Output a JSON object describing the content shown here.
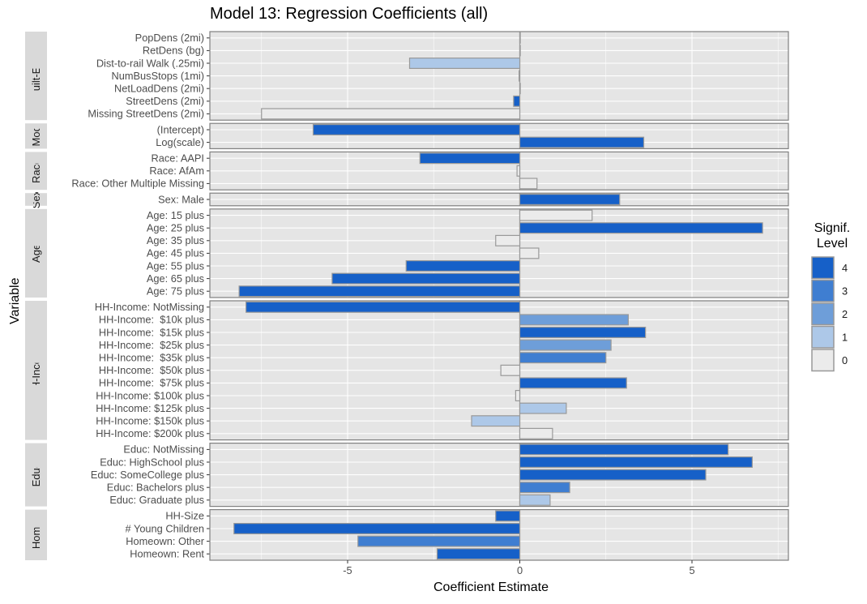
{
  "chart_data": {
    "type": "bar",
    "orientation": "horizontal",
    "title": "Model 13: Regression Coefficients (all)",
    "xlabel": "Coefficient Estimate",
    "ylabel": "Variable",
    "xlim": [
      -9,
      7.8
    ],
    "x_ticks": [
      -5,
      0,
      5
    ],
    "x_tick_labels": [
      "-5",
      "0",
      "5"
    ],
    "grid": true,
    "legend": {
      "title_line1": "Signif.",
      "title_line2": "Level",
      "position": "right",
      "levels": [
        "4",
        "3",
        "2",
        "1",
        "0"
      ],
      "colors": [
        "#1660c8",
        "#3f7ed1",
        "#6e9ed9",
        "#adc8e8",
        "#ebebeb"
      ]
    },
    "panels": [
      {
        "name": "Built-Env.",
        "rows": [
          {
            "label": "PopDens (2mi)",
            "value": 0.0,
            "level": 0
          },
          {
            "label": "RetDens (bg)",
            "value": 0.0,
            "level": 0
          },
          {
            "label": "Dist-to-rail Walk (.25mi)",
            "value": -3.2,
            "level": 1
          },
          {
            "label": "NumBusStops (1mi)",
            "value": -0.02,
            "level": 0
          },
          {
            "label": "NetLoadDens (2mi)",
            "value": 0.0,
            "level": 0
          },
          {
            "label": "StreetDens (2mi)",
            "value": -0.18,
            "level": 4
          },
          {
            "label": "Missing StreetDens (2mi)",
            "value": -7.5,
            "level": 0
          }
        ]
      },
      {
        "name": "Mod",
        "rows": [
          {
            "label": "(Intercept)",
            "value": -6.0,
            "level": 4
          },
          {
            "label": "Log(scale)",
            "value": 3.6,
            "level": 4
          }
        ]
      },
      {
        "name": "Race",
        "rows": [
          {
            "label": "Race: AAPI",
            "value": -2.9,
            "level": 4
          },
          {
            "label": "Race: AfAm",
            "value": -0.08,
            "level": 0
          },
          {
            "label": "Race: Other Multiple Missing",
            "value": 0.5,
            "level": 0
          }
        ]
      },
      {
        "name": "Sex",
        "rows": [
          {
            "label": "Sex: Male",
            "value": 2.9,
            "level": 4
          }
        ]
      },
      {
        "name": "Age",
        "rows": [
          {
            "label": "Age: 15 plus",
            "value": 2.1,
            "level": 0
          },
          {
            "label": "Age: 25 plus",
            "value": 7.05,
            "level": 4
          },
          {
            "label": "Age: 35 plus",
            "value": -0.7,
            "level": 0
          },
          {
            "label": "Age: 45 plus",
            "value": 0.55,
            "level": 0
          },
          {
            "label": "Age: 55 plus",
            "value": -3.3,
            "level": 4
          },
          {
            "label": "Age: 65 plus",
            "value": -5.45,
            "level": 4
          },
          {
            "label": "Age: 75 plus",
            "value": -8.15,
            "level": 4
          }
        ]
      },
      {
        "name": "HH-Income",
        "rows": [
          {
            "label": "HH-Income: NotMissing",
            "value": -7.95,
            "level": 4
          },
          {
            "label": "HH-Income:  $10k plus",
            "value": 3.15,
            "level": 2
          },
          {
            "label": "HH-Income:  $15k plus",
            "value": 3.65,
            "level": 4
          },
          {
            "label": "HH-Income:  $25k plus",
            "value": 2.65,
            "level": 2
          },
          {
            "label": "HH-Income:  $35k plus",
            "value": 2.5,
            "level": 3
          },
          {
            "label": "HH-Income:  $50k plus",
            "value": -0.55,
            "level": 0
          },
          {
            "label": "HH-Income:  $75k plus",
            "value": 3.1,
            "level": 4
          },
          {
            "label": "HH-Income: $100k plus",
            "value": -0.12,
            "level": 0
          },
          {
            "label": "HH-Income: $125k plus",
            "value": 1.35,
            "level": 1
          },
          {
            "label": "HH-Income: $150k plus",
            "value": -1.4,
            "level": 1
          },
          {
            "label": "HH-Income: $200k plus",
            "value": 0.95,
            "level": 0
          }
        ]
      },
      {
        "name": "Educ",
        "rows": [
          {
            "label": "Educ: NotMissing",
            "value": 6.05,
            "level": 4
          },
          {
            "label": "Educ: HighSchool plus",
            "value": 6.75,
            "level": 4
          },
          {
            "label": "Educ: SomeCollege plus",
            "value": 5.4,
            "level": 4
          },
          {
            "label": "Educ: Bachelors plus",
            "value": 1.45,
            "level": 3
          },
          {
            "label": "Educ: Graduate plus",
            "value": 0.88,
            "level": 1
          }
        ]
      },
      {
        "name": "Home",
        "rows": [
          {
            "label": "HH-Size",
            "value": -0.7,
            "level": 4
          },
          {
            "label": "# Young Children",
            "value": -8.3,
            "level": 4
          },
          {
            "label": "Homeown: Other",
            "value": -4.7,
            "level": 3
          },
          {
            "label": "Homeown: Rent",
            "value": -2.4,
            "level": 4
          }
        ]
      }
    ]
  }
}
